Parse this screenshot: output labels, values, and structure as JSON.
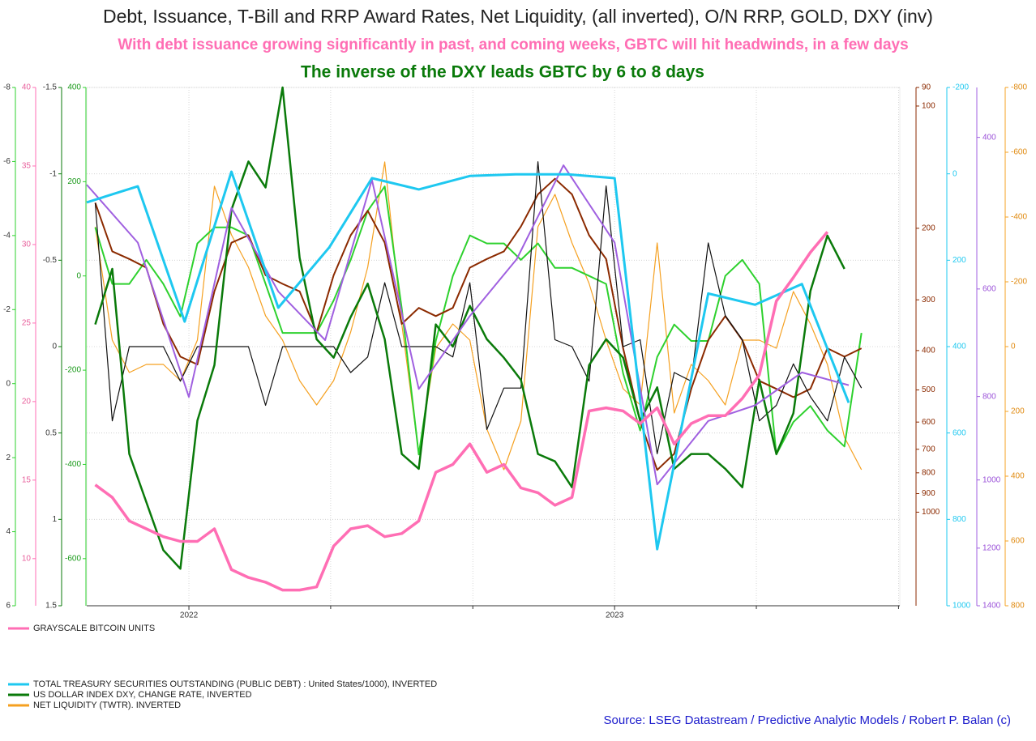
{
  "chart_data": {
    "type": "line",
    "title": "Debt, Issuance, T-Bill and RRP Award Rates, Net Liquidity, (all inverted), O/N RRP, GOLD, DXY (inv)",
    "subtitle": "With debt issuance growing significantly in past, and coming weeks, GBTC will hit headwinds, in a few days",
    "headline": "The inverse of the DXY leads GBTC by 6 to 8 days",
    "source": "Source: LSEG Datastream / Predictive Analytic Models / Robert P. Balan (c)",
    "xlim": [
      2021.76,
      2023.67
    ],
    "xticks": [
      {
        "value": 2022,
        "label": "2022"
      },
      {
        "value": 2023,
        "label": "2023"
      }
    ],
    "xminorticks": [
      2022.333,
      2022.667,
      2023.333,
      2023.667
    ],
    "grid": true,
    "grid_axis": 2,
    "axes": [
      {
        "side": "left",
        "color": "#333333",
        "line_color": "#2ed12e",
        "invert": true,
        "ylim": [
          -8,
          6
        ],
        "yticks": [
          -8,
          -6,
          -4,
          -2,
          0,
          2,
          4,
          6
        ]
      },
      {
        "side": "left",
        "color": "#e8609c",
        "line_color": "#ff6eb4",
        "invert": false,
        "ylim": [
          7,
          40
        ],
        "yticks": [
          40,
          35,
          30,
          25,
          20,
          15,
          10
        ]
      },
      {
        "side": "left",
        "color": "#333333",
        "line_color": "#0a7a0a",
        "invert": true,
        "ylim": [
          -1.5,
          1.5
        ],
        "yticks": [
          -1.5,
          -1.0,
          -0.5,
          0.0,
          0.5,
          1.0,
          1.5
        ]
      },
      {
        "side": "left",
        "color": "#1a9a1a",
        "line_color": "#2ed12e",
        "invert": false,
        "ylim": [
          -700,
          400
        ],
        "yticks": [
          400,
          200,
          0,
          -200,
          -400,
          -600
        ]
      },
      {
        "side": "right",
        "color": "#8b2a00",
        "line_color": "#8b2a00",
        "invert": true,
        "log": true,
        "ylim": [
          90,
          1700
        ],
        "yticks": [
          90,
          100,
          200,
          300,
          400,
          500,
          600,
          700,
          800,
          900,
          1000
        ]
      },
      {
        "side": "right",
        "color": "#1ec8f0",
        "line_color": "#1ec8f0",
        "invert": true,
        "ylim": [
          -200,
          1000
        ],
        "yticks": [
          -200,
          0,
          200,
          400,
          600,
          800,
          1000
        ]
      },
      {
        "side": "right",
        "color": "#9a50d8",
        "line_color": "#a060e0",
        "invert": true,
        "log": true,
        "ylim": [
          350,
          1400
        ],
        "yticks": [
          400,
          600,
          800,
          1000,
          1200,
          1400
        ]
      },
      {
        "side": "right",
        "color": "#e08a10",
        "line_color": "#f5a020",
        "invert": true,
        "ylim": [
          -800,
          800
        ],
        "yticks": [
          -800,
          -600,
          -400,
          -200,
          0,
          200,
          400,
          600,
          800
        ]
      }
    ],
    "x": [
      2021.78,
      2021.82,
      2021.86,
      2021.9,
      2021.94,
      2021.98,
      2022.02,
      2022.06,
      2022.1,
      2022.14,
      2022.18,
      2022.22,
      2022.26,
      2022.3,
      2022.34,
      2022.38,
      2022.42,
      2022.46,
      2022.5,
      2022.54,
      2022.58,
      2022.62,
      2022.66,
      2022.7,
      2022.74,
      2022.78,
      2022.82,
      2022.86,
      2022.9,
      2022.94,
      2022.98,
      2023.02,
      2023.06,
      2023.1,
      2023.14,
      2023.18,
      2023.22,
      2023.26,
      2023.3,
      2023.34,
      2023.38,
      2023.42,
      2023.46,
      2023.5,
      2023.54,
      2023.58
    ],
    "series": [
      {
        "color": "#f5a020",
        "axis": 7,
        "width": 1.2,
        "name": "NET LIQUIDITY (TWTR). INVERTED",
        "values": [
          -370,
          -20,
          80,
          55,
          55,
          105,
          -20,
          -495,
          -345,
          -245,
          -95,
          -20,
          105,
          180,
          105,
          -45,
          -245,
          -570,
          -70,
          330,
          5,
          -70,
          -20,
          255,
          380,
          230,
          -370,
          -470,
          -320,
          -195,
          -20,
          130,
          180,
          -320,
          205,
          55,
          105,
          180,
          -20,
          -20,
          5,
          -170,
          -70,
          55,
          280,
          380
        ]
      },
      {
        "color": "#2ed12e",
        "axis": 3,
        "width": 2,
        "values": [
          103,
          -17,
          -17,
          34,
          -17,
          -86,
          69,
          103,
          103,
          86,
          -17,
          -121,
          -121,
          -121,
          -52,
          34,
          138,
          190,
          -69,
          -379,
          -138,
          0,
          86,
          69,
          69,
          34,
          69,
          17,
          17,
          0,
          -17,
          -207,
          -328,
          -172,
          -103,
          -138,
          -138,
          0,
          34,
          -17,
          -379,
          -310,
          -276,
          -328,
          -362,
          -121
        ]
      },
      {
        "color": "#8b2a00",
        "axis": 4,
        "width": 2,
        "values": [
          173,
          228,
          238,
          250,
          344,
          414,
          433,
          286,
          217,
          208,
          261,
          274,
          286,
          361,
          261,
          208,
          181,
          217,
          344,
          314,
          329,
          314,
          250,
          238,
          228,
          198,
          165,
          151,
          165,
          208,
          238,
          395,
          597,
          787,
          718,
          497,
          377,
          329,
          377,
          475,
          497,
          521,
          497,
          395,
          414,
          395
        ]
      },
      {
        "color": "#111111",
        "axis": 2,
        "width": 1.2,
        "values": [
          -0.83,
          0.43,
          0,
          0,
          0,
          0.2,
          0,
          0,
          0,
          0,
          0.34,
          0,
          0,
          0,
          0,
          0.15,
          0.06,
          -0.37,
          0,
          0,
          0,
          0.06,
          -0.37,
          0.48,
          0.24,
          0.24,
          -1.07,
          -0.04,
          0,
          0.2,
          -0.93,
          0,
          -0.04,
          0.62,
          0.15,
          0.2,
          -0.6,
          -0.18,
          -0.04,
          0.43,
          0.34,
          0.1,
          0.29,
          0.43,
          0.06,
          0.24
        ]
      },
      {
        "color": "#0a7a0a",
        "axis": 0,
        "width": 2.5,
        "name": "US DOLLAR INDEX DXY, CHANGE RATE, INVERTED",
        "values": [
          -1.6,
          -3.1,
          1.9,
          3.2,
          4.5,
          5.0,
          1.0,
          -0.5,
          -4.7,
          -6.0,
          -5.3,
          -8.0,
          -3.4,
          -1.2,
          -0.7,
          -1.8,
          -2.7,
          -1.2,
          1.9,
          2.3,
          -1.6,
          -1.0,
          -2.1,
          -1.2,
          -0.7,
          -0.1,
          1.9,
          2.1,
          2.8,
          -0.5,
          -1.2,
          -0.7,
          1.0,
          0.1,
          2.3,
          1.9,
          1.9,
          2.3,
          2.8,
          -0.1,
          1.9,
          0.8,
          -2.5,
          -4.0,
          -3.1,
          null
        ]
      },
      {
        "color": "#a060e0",
        "axis": 6,
        "width": 2,
        "x": [
          2021.76,
          2021.88,
          2022.0,
          2022.1,
          2022.21,
          2022.32,
          2022.43,
          2022.54,
          2022.66,
          2022.77,
          2022.88,
          2023.0,
          2023.1,
          2023.22,
          2023.33,
          2023.44,
          2023.55
        ],
        "values": [
          454,
          530,
          801,
          483,
          604,
          688,
          448,
          784,
          645,
          554,
          431,
          530,
          1012,
          854,
          819,
          750,
          776
        ]
      },
      {
        "color": "#1ec8f0",
        "axis": 5,
        "width": 3,
        "name": "TOTAL TREASURY SECURITIES OUTSTANDING (PUBLIC DEBT) : United States/1000), INVERTED",
        "x": [
          2021.76,
          2021.88,
          2021.99,
          2022.1,
          2022.21,
          2022.33,
          2022.43,
          2022.54,
          2022.66,
          2022.77,
          2022.89,
          2023.0,
          2023.1,
          2023.22,
          2023.33,
          2023.44,
          2023.55
        ],
        "values": [
          66,
          29,
          342,
          -5,
          310,
          170,
          10,
          36,
          5,
          1,
          1,
          10,
          869,
          277,
          303,
          255,
          530
        ]
      },
      {
        "color": "#ff6eb4",
        "axis": 1,
        "width": 3.5,
        "name": "GRAYSCALE BITCOIN UNITS",
        "values": [
          14.7,
          13.9,
          12.4,
          11.9,
          11.4,
          11.1,
          11.1,
          11.9,
          9.3,
          8.8,
          8.5,
          8.0,
          8.0,
          8.2,
          10.8,
          11.9,
          12.1,
          11.4,
          11.6,
          12.4,
          15.5,
          16.0,
          17.3,
          15.5,
          16.0,
          14.5,
          14.2,
          13.4,
          13.9,
          19.4,
          19.6,
          19.4,
          18.6,
          19.6,
          17.3,
          18.6,
          19.1,
          19.1,
          20.2,
          21.7,
          26.4,
          27.9,
          29.5,
          30.8,
          null,
          null
        ]
      }
    ]
  }
}
